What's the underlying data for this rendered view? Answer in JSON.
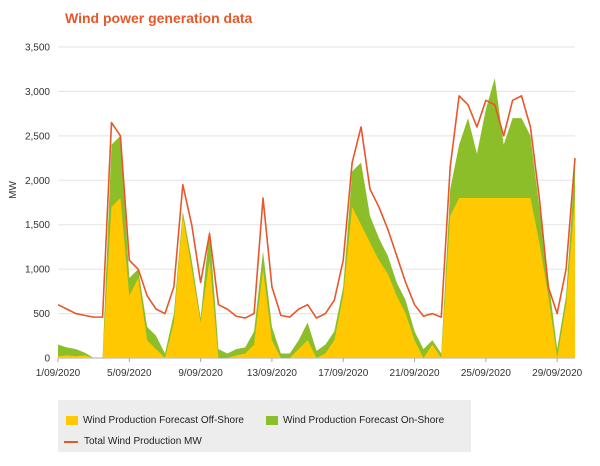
{
  "chart_data": {
    "type": "area",
    "title": "Wind power generation data",
    "xlabel": "",
    "ylabel": "MW",
    "ylim": [
      0,
      3500
    ],
    "yticks": [
      0,
      500,
      1000,
      1500,
      2000,
      2500,
      3000,
      3500
    ],
    "ytick_labels": [
      "0",
      "500",
      "1,000",
      "1,500",
      "2,000",
      "2,500",
      "3,000",
      "3,500"
    ],
    "xlim": [
      "2020-09-01",
      "2020-09-30"
    ],
    "xtick_labels": [
      "1/09/2020",
      "5/09/2020",
      "9/09/2020",
      "13/09/2020",
      "17/09/2020",
      "21/09/2020",
      "25/09/2020",
      "29/09/2020"
    ],
    "xtick_dates": [
      "2020-09-01",
      "2020-09-05",
      "2020-09-09",
      "2020-09-13",
      "2020-09-17",
      "2020-09-21",
      "2020-09-25",
      "2020-09-29"
    ],
    "grid": "horizontal",
    "legend_position": "bottom",
    "x": [
      "2020-09-01 00:00",
      "2020-09-01 12:00",
      "2020-09-02 00:00",
      "2020-09-02 12:00",
      "2020-09-03 00:00",
      "2020-09-03 12:00",
      "2020-09-04 00:00",
      "2020-09-04 12:00",
      "2020-09-05 00:00",
      "2020-09-05 12:00",
      "2020-09-06 00:00",
      "2020-09-06 12:00",
      "2020-09-07 00:00",
      "2020-09-07 12:00",
      "2020-09-08 00:00",
      "2020-09-08 12:00",
      "2020-09-09 00:00",
      "2020-09-09 12:00",
      "2020-09-10 00:00",
      "2020-09-10 12:00",
      "2020-09-11 00:00",
      "2020-09-11 12:00",
      "2020-09-12 00:00",
      "2020-09-12 12:00",
      "2020-09-13 00:00",
      "2020-09-13 12:00",
      "2020-09-14 00:00",
      "2020-09-14 12:00",
      "2020-09-15 00:00",
      "2020-09-15 12:00",
      "2020-09-16 00:00",
      "2020-09-16 12:00",
      "2020-09-17 00:00",
      "2020-09-17 12:00",
      "2020-09-18 00:00",
      "2020-09-18 12:00",
      "2020-09-19 00:00",
      "2020-09-19 12:00",
      "2020-09-20 00:00",
      "2020-09-20 12:00",
      "2020-09-21 00:00",
      "2020-09-21 12:00",
      "2020-09-22 00:00",
      "2020-09-22 12:00",
      "2020-09-23 00:00",
      "2020-09-23 12:00",
      "2020-09-24 00:00",
      "2020-09-24 12:00",
      "2020-09-25 00:00",
      "2020-09-25 12:00",
      "2020-09-26 00:00",
      "2020-09-26 12:00",
      "2020-09-27 00:00",
      "2020-09-27 12:00",
      "2020-09-28 00:00",
      "2020-09-28 12:00",
      "2020-09-29 00:00",
      "2020-09-29 12:00",
      "2020-09-30 00:00"
    ],
    "series": [
      {
        "name": "Wind Production Forecast Off-Shore",
        "color": "#ffc800",
        "kind": "area",
        "values": [
          20,
          30,
          20,
          30,
          0,
          0,
          1700,
          1800,
          700,
          900,
          200,
          100,
          0,
          400,
          1600,
          1000,
          400,
          1100,
          0,
          0,
          30,
          50,
          150,
          1000,
          200,
          0,
          0,
          100,
          200,
          0,
          50,
          200,
          700,
          1700,
          1500,
          1300,
          1100,
          950,
          700,
          500,
          200,
          0,
          150,
          0,
          1600,
          1800,
          1800,
          1800,
          1800,
          1800,
          1800,
          1800,
          1800,
          1800,
          1300,
          700,
          0,
          600,
          1800
        ]
      },
      {
        "name": "Wind Production Forecast On-Shore",
        "color": "#8cbe2a",
        "kind": "stacked-area",
        "values": [
          150,
          120,
          100,
          60,
          0,
          0,
          2400,
          2500,
          900,
          1000,
          350,
          250,
          50,
          500,
          1650,
          1100,
          450,
          1450,
          100,
          50,
          100,
          120,
          300,
          1200,
          350,
          50,
          50,
          200,
          400,
          80,
          150,
          300,
          800,
          2100,
          2200,
          1600,
          1350,
          1150,
          850,
          650,
          300,
          100,
          200,
          50,
          1900,
          2400,
          2700,
          2300,
          2800,
          3150,
          2400,
          2700,
          2700,
          2500,
          1700,
          900,
          100,
          700,
          2200
        ]
      },
      {
        "name": "Total Wind Production MW",
        "color": "#e8572a",
        "kind": "line",
        "values": [
          600,
          550,
          500,
          480,
          460,
          460,
          2650,
          2500,
          1100,
          1000,
          700,
          550,
          500,
          800,
          1950,
          1500,
          850,
          1400,
          600,
          550,
          470,
          450,
          500,
          1800,
          800,
          480,
          460,
          550,
          600,
          450,
          500,
          650,
          1100,
          2200,
          2600,
          1900,
          1700,
          1450,
          1150,
          850,
          600,
          470,
          500,
          460,
          2150,
          2950,
          2850,
          2600,
          2900,
          2850,
          2500,
          2900,
          2950,
          2600,
          1800,
          800,
          500,
          1000,
          2250
        ]
      }
    ]
  },
  "legend": {
    "items": [
      {
        "label": "Wind Production Forecast Off-Shore",
        "color": "#ffc800"
      },
      {
        "label": "Wind Production Forecast On-Shore",
        "color": "#8cbe2a"
      },
      {
        "label": "Total Wind Production MW",
        "color": "#e8572a"
      }
    ]
  },
  "colors": {
    "title": "#e8572a",
    "grid": "#e3e3e3",
    "axis": "#aaaaaa"
  }
}
